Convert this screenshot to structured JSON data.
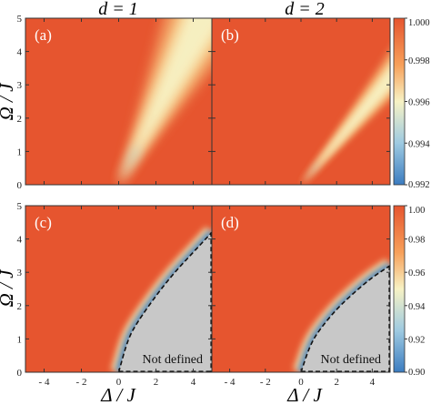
{
  "column_titles": [
    "d = 1",
    "d = 2"
  ],
  "x_axis_label": "Δ / J",
  "y_axis_label": "Ω / J",
  "not_defined_text": "Not defined",
  "x_ticks": [
    "- 4",
    "- 2",
    "0",
    "2",
    "4"
  ],
  "y_ticks": [
    "0",
    "1",
    "2",
    "3",
    "4",
    "5"
  ],
  "colors": {
    "low": "#3b7cc0",
    "mid": "#f7f2c4",
    "high": "#e6552f",
    "region": "#c8c8c8"
  },
  "chart_data": [
    {
      "type": "heatmap",
      "panel": "(a)",
      "column": "d = 1",
      "xlabel": "Δ / J",
      "ylabel": "Ω / J",
      "xlim": [
        -5,
        5
      ],
      "ylim": [
        0,
        5
      ],
      "colorbar": {
        "range": [
          0.992,
          1.0
        ],
        "ticks": [
          "0.992",
          "0.994",
          "0.996",
          "0.998",
          "1.000"
        ]
      },
      "feature": "bright wedge from origin spreading up-right; minimum near (0,0)",
      "wedge_angle_deg": 63,
      "wedge_width_deg": 13
    },
    {
      "type": "heatmap",
      "panel": "(b)",
      "column": "d = 2",
      "xlabel": "Δ / J",
      "ylabel": "Ω / J",
      "xlim": [
        -5,
        5
      ],
      "ylim": [
        0,
        5
      ],
      "colorbar": {
        "range": [
          0.992,
          1.0
        ],
        "ticks": [
          "0.992",
          "0.994",
          "0.996",
          "0.998",
          "1.000"
        ]
      },
      "feature": "narrower bright wedge from origin up-right",
      "wedge_angle_deg": 50,
      "wedge_width_deg": 7
    },
    {
      "type": "heatmap",
      "panel": "(c)",
      "column": "d = 1",
      "xlabel": "Δ / J",
      "ylabel": "Ω / J",
      "xlim": [
        -5,
        5
      ],
      "ylim": [
        0,
        5
      ],
      "colorbar": {
        "range": [
          0.9,
          1.0
        ],
        "ticks": [
          "0.90",
          "0.92",
          "0.94",
          "0.96",
          "0.98",
          "1.00"
        ]
      },
      "undefined_region": "Not defined",
      "boundary": [
        [
          0,
          0
        ],
        [
          0.5,
          1.0
        ],
        [
          1.0,
          1.5
        ],
        [
          2.0,
          2.3
        ],
        [
          3.0,
          3.0
        ],
        [
          4.0,
          3.6
        ],
        [
          5.0,
          4.2
        ]
      ]
    },
    {
      "type": "heatmap",
      "panel": "(d)",
      "column": "d = 2",
      "xlabel": "Δ / J",
      "ylabel": "Ω / J",
      "xlim": [
        -5,
        5
      ],
      "ylim": [
        0,
        5
      ],
      "colorbar": {
        "range": [
          0.9,
          1.0
        ],
        "ticks": [
          "0.90",
          "0.92",
          "0.94",
          "0.96",
          "0.98",
          "1.00"
        ]
      },
      "undefined_region": "Not defined",
      "boundary": [
        [
          0,
          0
        ],
        [
          0.5,
          0.8
        ],
        [
          1.0,
          1.25
        ],
        [
          2.0,
          1.9
        ],
        [
          3.0,
          2.4
        ],
        [
          4.0,
          2.85
        ],
        [
          5.0,
          3.2
        ]
      ]
    }
  ]
}
